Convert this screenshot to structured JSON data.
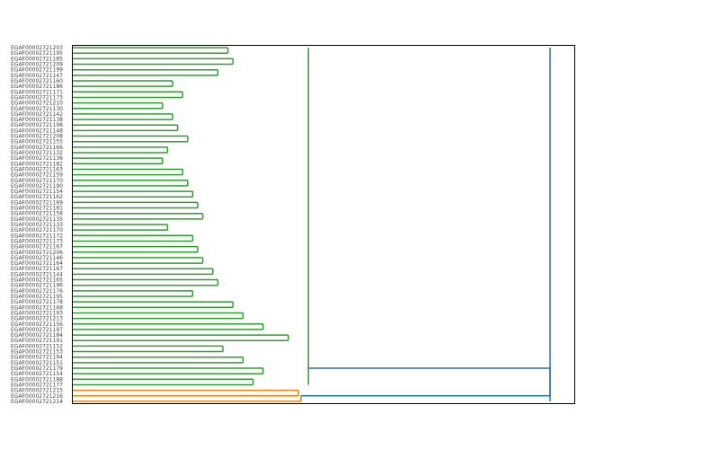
{
  "chart_data": {
    "type": "dendrogram",
    "orientation": "left",
    "title": "",
    "xlabel": "",
    "ylabel": "",
    "xlim": [
      0,
      1.0
    ],
    "grid": false,
    "legend": "none",
    "colors": {
      "cluster_a": "#2ca02c",
      "cluster_b": "#ff7f0e",
      "above_threshold": "#1f77b4"
    },
    "leaves": [
      "EGAF00002721203",
      "EGAF00002721195",
      "EGAF00002721185",
      "EGAF00002721209",
      "EGAF00002721199",
      "EGAF00002721147",
      "EGAF00002721160",
      "EGAF00002721186",
      "EGAF00002721171",
      "EGAF00002721173",
      "EGAF00002721210",
      "EGAF00002721130",
      "EGAF00002721142",
      "EGAF00002721138",
      "EGAF00002721198",
      "EGAF00002721148",
      "EGAF00002721208",
      "EGAF00002721155",
      "EGAF00002721166",
      "EGAF00002721132",
      "EGAF00002721136",
      "EGAF00002721182",
      "EGAF00002721163",
      "EGAF00002721159",
      "EGAF00002721170",
      "EGAF00002721190",
      "EGAF00002721154",
      "EGAF00002721162",
      "EGAF00002721169",
      "EGAF00002721181",
      "EGAF00002721158",
      "EGAF00002721135",
      "EGAF00002721133",
      "EGAF00002721170",
      "EGAF00002721172",
      "EGAF00002721173",
      "EGAF00002721167",
      "EGAF00002721206",
      "EGAF00002721146",
      "EGAF00002721164",
      "EGAF00002721167",
      "EGAF00002721144",
      "EGAF00002721165",
      "EGAF00002721196",
      "EGAF00002721176",
      "EGAF00002721195",
      "EGAF00002721178",
      "EGAF00002721168",
      "EGAF00002721193",
      "EGAF00002721213",
      "EGAF00002721156",
      "EGAF00002721197",
      "EGAF00002721184",
      "EGAF00002721191",
      "EGAF00002721152",
      "EGAF00002721153",
      "EGAF00002721194",
      "EGAF00002721151",
      "EGAF00002721179",
      "EGAF00002721154",
      "EGAF00002721188",
      "EGAF00002721177",
      "EGAF00002721215",
      "EGAF00002721216",
      "EGAF00002721214"
    ],
    "links": [
      {
        "leaves": [
          0,
          1
        ],
        "height": 0.31,
        "cluster": "cluster_a"
      },
      {
        "leaves": [
          2,
          3
        ],
        "height": 0.32,
        "cluster": "cluster_a"
      },
      {
        "leaves": [
          4,
          5
        ],
        "height": 0.29,
        "cluster": "cluster_a"
      },
      {
        "leaves": [
          6,
          7
        ],
        "height": 0.2,
        "cluster": "cluster_a"
      },
      {
        "leaves": [
          8,
          9
        ],
        "height": 0.22,
        "cluster": "cluster_a"
      },
      {
        "leaves": [
          10,
          11
        ],
        "height": 0.18,
        "cluster": "cluster_a"
      },
      {
        "leaves": [
          12,
          13
        ],
        "height": 0.2,
        "cluster": "cluster_a"
      },
      {
        "leaves": [
          14,
          15
        ],
        "height": 0.21,
        "cluster": "cluster_a"
      },
      {
        "leaves": [
          16,
          17
        ],
        "height": 0.23,
        "cluster": "cluster_a"
      },
      {
        "leaves": [
          18,
          19
        ],
        "height": 0.19,
        "cluster": "cluster_a"
      },
      {
        "leaves": [
          20,
          21
        ],
        "height": 0.18,
        "cluster": "cluster_a"
      },
      {
        "leaves": [
          22,
          23
        ],
        "height": 0.22,
        "cluster": "cluster_a"
      },
      {
        "leaves": [
          24,
          25
        ],
        "height": 0.23,
        "cluster": "cluster_a"
      },
      {
        "leaves": [
          26,
          27
        ],
        "height": 0.24,
        "cluster": "cluster_a"
      },
      {
        "leaves": [
          28,
          29
        ],
        "height": 0.25,
        "cluster": "cluster_a"
      },
      {
        "leaves": [
          30,
          31
        ],
        "height": 0.26,
        "cluster": "cluster_a"
      },
      {
        "leaves": [
          32,
          33
        ],
        "height": 0.19,
        "cluster": "cluster_a"
      },
      {
        "leaves": [
          34,
          35
        ],
        "height": 0.24,
        "cluster": "cluster_a"
      },
      {
        "leaves": [
          36,
          37
        ],
        "height": 0.25,
        "cluster": "cluster_a"
      },
      {
        "leaves": [
          38,
          39
        ],
        "height": 0.26,
        "cluster": "cluster_a"
      },
      {
        "leaves": [
          40,
          41
        ],
        "height": 0.28,
        "cluster": "cluster_a"
      },
      {
        "leaves": [
          42,
          43
        ],
        "height": 0.29,
        "cluster": "cluster_a"
      },
      {
        "leaves": [
          44,
          45
        ],
        "height": 0.24,
        "cluster": "cluster_a"
      },
      {
        "leaves": [
          46,
          47
        ],
        "height": 0.32,
        "cluster": "cluster_a"
      },
      {
        "leaves": [
          48,
          49
        ],
        "height": 0.34,
        "cluster": "cluster_a"
      },
      {
        "leaves": [
          50,
          51
        ],
        "height": 0.38,
        "cluster": "cluster_a"
      },
      {
        "leaves": [
          52,
          53
        ],
        "height": 0.43,
        "cluster": "cluster_a"
      },
      {
        "leaves": [
          54,
          55
        ],
        "height": 0.3,
        "cluster": "cluster_a"
      },
      {
        "leaves": [
          56,
          57
        ],
        "height": 0.34,
        "cluster": "cluster_a"
      },
      {
        "leaves": [
          58,
          59
        ],
        "height": 0.38,
        "cluster": "cluster_a"
      },
      {
        "leaves": [
          60,
          61
        ],
        "height": 0.36,
        "cluster": "cluster_a"
      },
      {
        "leaves": [
          62,
          63
        ],
        "height": 0.45,
        "cluster": "cluster_b"
      },
      {
        "leaves": [
          63,
          64
        ],
        "height": 0.455,
        "cluster": "cluster_b"
      },
      {
        "leaves": [
          0,
          61
        ],
        "height": 0.47,
        "cluster": "cluster_a"
      },
      {
        "leaves": [
          0,
          64
        ],
        "height": 0.95,
        "cluster": "above_threshold"
      }
    ]
  }
}
